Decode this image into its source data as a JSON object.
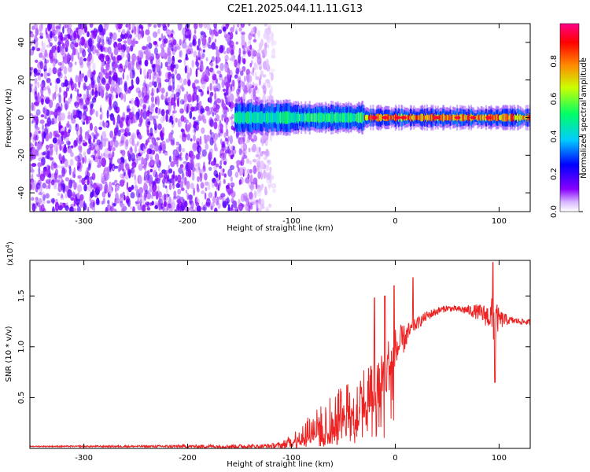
{
  "title": "C2E1.2025.044.11.11.G13",
  "chart_data": [
    {
      "type": "heatmap",
      "title": "C2E1.2025.044.11.11.G13",
      "xlabel": "Height of straight line (km)",
      "ylabel": "Frequency (Hz)",
      "xlim": [
        -352,
        130
      ],
      "ylim": [
        -50,
        50
      ],
      "xticks": [
        -300,
        -200,
        -100,
        0,
        100
      ],
      "yticks": [
        -40,
        -20,
        0,
        20,
        40
      ],
      "grid": false,
      "colorbar": {
        "label": "Normalized spectral amplitude",
        "range": [
          0,
          1
        ],
        "ticks": [
          0.0,
          0.2,
          0.4,
          0.6,
          0.8
        ],
        "colors": [
          "#ffffff",
          "#8800ff",
          "#0000ff",
          "#00ccff",
          "#00ff66",
          "#ccff00",
          "#ff8800",
          "#ff0000",
          "#ff0088"
        ]
      },
      "regions": [
        {
          "x_range": [
            -352,
            -155
          ],
          "freq_range": [
            -50,
            50
          ],
          "amplitude": 0.15,
          "description_type": "broadband"
        },
        {
          "x_range": [
            -155,
            -100
          ],
          "freq_range": [
            -5,
            5
          ],
          "amplitude": 0.5
        },
        {
          "x_range": [
            -100,
            -30
          ],
          "freq_range": [
            -4,
            4
          ],
          "amplitude": 0.55
        },
        {
          "x_range": [
            -30,
            130
          ],
          "freq_range": [
            -2,
            2
          ],
          "amplitude": 0.85
        }
      ]
    },
    {
      "type": "line",
      "xlabel": "Height of straight line (km)",
      "ylabel": "SNR (10 * v/v)",
      "scale_note": "(x10",
      "scale_exp": "4",
      "ylabel_full": "SNR (10 * v/v)",
      "xlim": [
        -352,
        130
      ],
      "ylim": [
        0,
        1.85
      ],
      "xticks": [
        -300,
        -200,
        -100,
        0,
        100
      ],
      "yticks": [
        0.5,
        1.0,
        1.5
      ],
      "grid": false,
      "series": [
        {
          "color": "#ee2222",
          "envelope": {
            "x": [
              -352,
              -250,
              -160,
              -130,
              -110,
              -100,
              -90,
              -80,
              -70,
              -60,
              -50,
              -40,
              -30,
              -20,
              -10,
              0,
              10,
              20,
              30,
              40,
              50,
              60,
              70,
              80,
              90,
              95,
              100,
              110,
              120,
              130
            ],
            "base": [
              0.02,
              0.02,
              0.02,
              0.02,
              0.03,
              0.06,
              0.12,
              0.18,
              0.22,
              0.28,
              0.35,
              0.42,
              0.5,
              0.6,
              0.75,
              0.95,
              1.1,
              1.22,
              1.3,
              1.35,
              1.38,
              1.37,
              1.36,
              1.34,
              1.3,
              1.28,
              1.27,
              1.26,
              1.25,
              1.24
            ],
            "noise": [
              0.005,
              0.01,
              0.02,
              0.02,
              0.03,
              0.08,
              0.14,
              0.18,
              0.22,
              0.25,
              0.28,
              0.3,
              0.32,
              0.32,
              0.28,
              0.25,
              0.12,
              0.06,
              0.05,
              0.04,
              0.03,
              0.03,
              0.05,
              0.08,
              0.12,
              0.25,
              0.1,
              0.04,
              0.03,
              0.03
            ]
          },
          "spikes": [
            {
              "x": -10,
              "y": 1.5
            },
            {
              "x": 17,
              "y": 1.68
            },
            {
              "x": 94,
              "y": 1.83
            },
            {
              "x": 96,
              "y": 0.65
            },
            {
              "x": -20,
              "y": 1.48
            },
            {
              "x": -1,
              "y": 1.6
            }
          ]
        }
      ]
    }
  ]
}
